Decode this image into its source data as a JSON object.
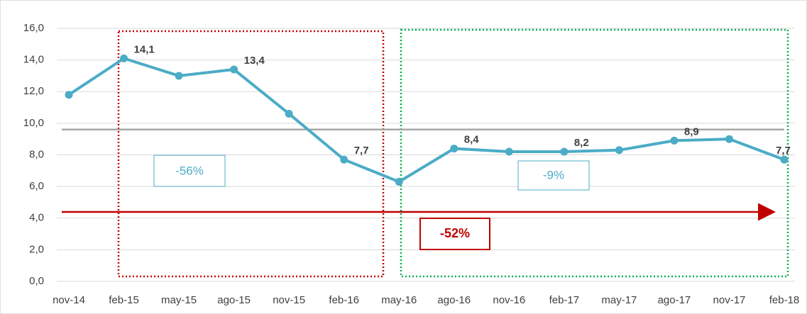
{
  "chart_data": {
    "type": "line",
    "categories": [
      "nov-14",
      "feb-15",
      "may-15",
      "ago-15",
      "nov-15",
      "feb-16",
      "may-16",
      "ago-16",
      "nov-16",
      "feb-17",
      "may-17",
      "ago-17",
      "nov-17",
      "feb-18"
    ],
    "series": [
      {
        "color": "#4bacc6",
        "values": [
          11.8,
          14.1,
          13.0,
          13.4,
          10.6,
          7.7,
          6.3,
          8.4,
          8.2,
          8.2,
          8.3,
          8.9,
          9.0,
          7.7
        ],
        "value_labels": [
          null,
          "14,1",
          null,
          "13,4",
          null,
          "7,7",
          null,
          "8,4",
          null,
          "8,2",
          null,
          "8,9",
          null,
          "7,7"
        ]
      }
    ],
    "reference_line": 9.6,
    "ylim": [
      0,
      16
    ],
    "yticks": [
      {
        "value": 0,
        "label": "0,0"
      },
      {
        "value": 2,
        "label": "2,0"
      },
      {
        "value": 4,
        "label": "4,0"
      },
      {
        "value": 6,
        "label": "6,0"
      },
      {
        "value": 8,
        "label": "8,0"
      },
      {
        "value": 10,
        "label": "10,0"
      },
      {
        "value": 12,
        "label": "12,0"
      },
      {
        "value": 14,
        "label": "14,0"
      },
      {
        "value": 16,
        "label": "16,0"
      }
    ],
    "grid": true,
    "annotations": [
      "-56%",
      "-9%",
      "-52%"
    ]
  }
}
